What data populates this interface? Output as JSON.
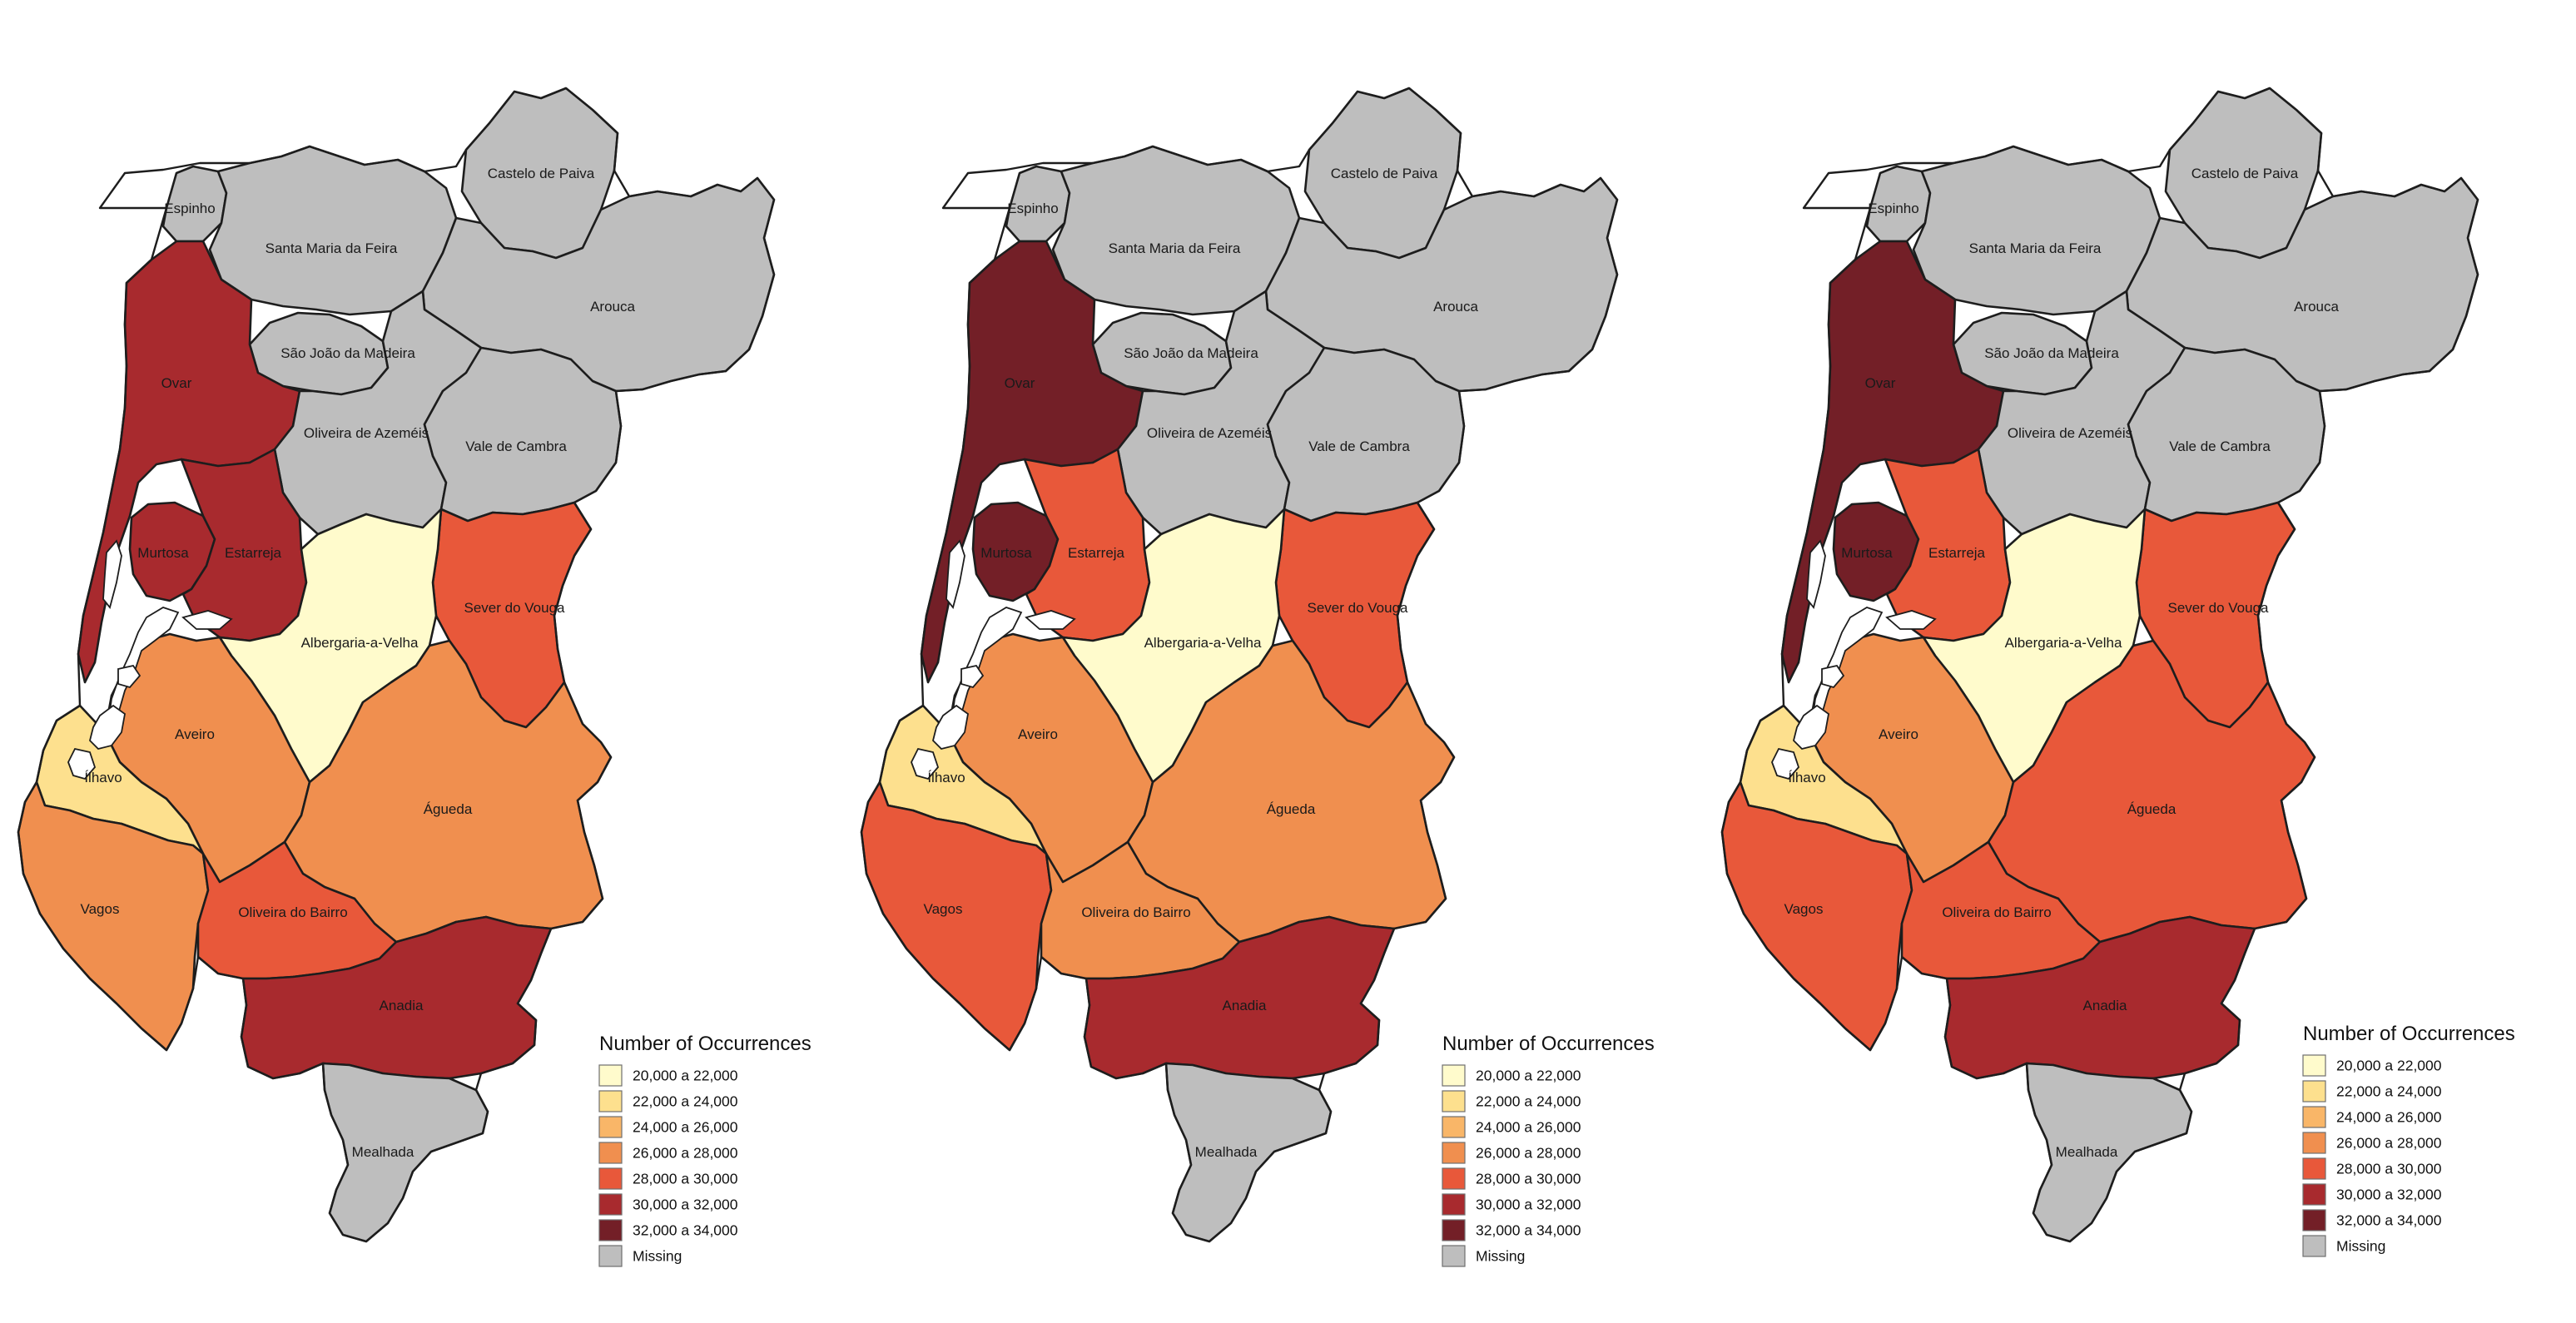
{
  "colors": {
    "missing": "#bebebe",
    "border": "#1d1d1d",
    "water": "#ffffff"
  },
  "legend": {
    "title": "Number of Occurrences",
    "classes": [
      {
        "label": "20,000 a 22,000",
        "color": "#fffbcc"
      },
      {
        "label": "22,000 a 24,000",
        "color": "#fde08e"
      },
      {
        "label": "24,000 a 26,000",
        "color": "#f9b668"
      },
      {
        "label": "26,000 a 28,000",
        "color": "#f08f4f"
      },
      {
        "label": "28,000 a 30,000",
        "color": "#e8583a"
      },
      {
        "label": "30,000 a 32,000",
        "color": "#a82a2e"
      },
      {
        "label": "32,000 a 34,000",
        "color": "#731f27"
      }
    ],
    "missing_label": "Missing"
  },
  "municipalities": {
    "castelo_de_paiva": "Castelo de Paiva",
    "espinho": "Espinho",
    "santa_maria_da_feira": "Santa Maria da Feira",
    "arouca": "Arouca",
    "sao_joao_da_madeira": "São João da Madeira",
    "ovar": "Ovar",
    "oliveira_de_azemeis": "Oliveira de Azeméis",
    "vale_de_cambra": "Vale de Cambra",
    "murtosa": "Murtosa",
    "estarreja": "Estarreja",
    "sever_do_vouga": "Sever do Vouga",
    "albergaria_a_velha": "Albergaria-a-Velha",
    "aveiro": "Aveiro",
    "ilhavo": "Ílhavo",
    "agueda": "Águeda",
    "vagos": "Vagos",
    "oliveira_do_bairro": "Oliveira do Bairro",
    "anadia": "Anadia",
    "mealhada": "Mealhada"
  },
  "maps": [
    {
      "values": {
        "castelo_de_paiva": "Missing",
        "espinho": "Missing",
        "santa_maria_da_feira": "Missing",
        "arouca": "Missing",
        "sao_joao_da_madeira": "Missing",
        "oliveira_de_azemeis": "Missing",
        "vale_de_cambra": "Missing",
        "mealhada": "Missing",
        "ovar": "30,000 a 32,000",
        "murtosa": "30,000 a 32,000",
        "estarreja": "30,000 a 32,000",
        "sever_do_vouga": "28,000 a 30,000",
        "albergaria_a_velha": "20,000 a 22,000",
        "aveiro": "26,000 a 28,000",
        "ilhavo": "22,000 a 24,000",
        "agueda": "26,000 a 28,000",
        "vagos": "26,000 a 28,000",
        "oliveira_do_bairro": "28,000 a 30,000",
        "anadia": "30,000 a 32,000"
      }
    },
    {
      "values": {
        "castelo_de_paiva": "Missing",
        "espinho": "Missing",
        "santa_maria_da_feira": "Missing",
        "arouca": "Missing",
        "sao_joao_da_madeira": "Missing",
        "oliveira_de_azemeis": "Missing",
        "vale_de_cambra": "Missing",
        "mealhada": "Missing",
        "ovar": "32,000 a 34,000",
        "murtosa": "32,000 a 34,000",
        "estarreja": "28,000 a 30,000",
        "sever_do_vouga": "28,000 a 30,000",
        "albergaria_a_velha": "20,000 a 22,000",
        "aveiro": "26,000 a 28,000",
        "ilhavo": "22,000 a 24,000",
        "agueda": "26,000 a 28,000",
        "vagos": "28,000 a 30,000",
        "oliveira_do_bairro": "26,000 a 28,000",
        "anadia": "30,000 a 32,000"
      }
    },
    {
      "values": {
        "castelo_de_paiva": "Missing",
        "espinho": "Missing",
        "santa_maria_da_feira": "Missing",
        "arouca": "Missing",
        "sao_joao_da_madeira": "Missing",
        "oliveira_de_azemeis": "Missing",
        "vale_de_cambra": "Missing",
        "mealhada": "Missing",
        "ovar": "32,000 a 34,000",
        "murtosa": "32,000 a 34,000",
        "estarreja": "28,000 a 30,000",
        "sever_do_vouga": "28,000 a 30,000",
        "albergaria_a_velha": "20,000 a 22,000",
        "aveiro": "26,000 a 28,000",
        "ilhavo": "22,000 a 24,000",
        "agueda": "28,000 a 30,000",
        "vagos": "28,000 a 30,000",
        "oliveira_do_bairro": "28,000 a 30,000",
        "anadia": "30,000 a 32,000"
      }
    }
  ]
}
